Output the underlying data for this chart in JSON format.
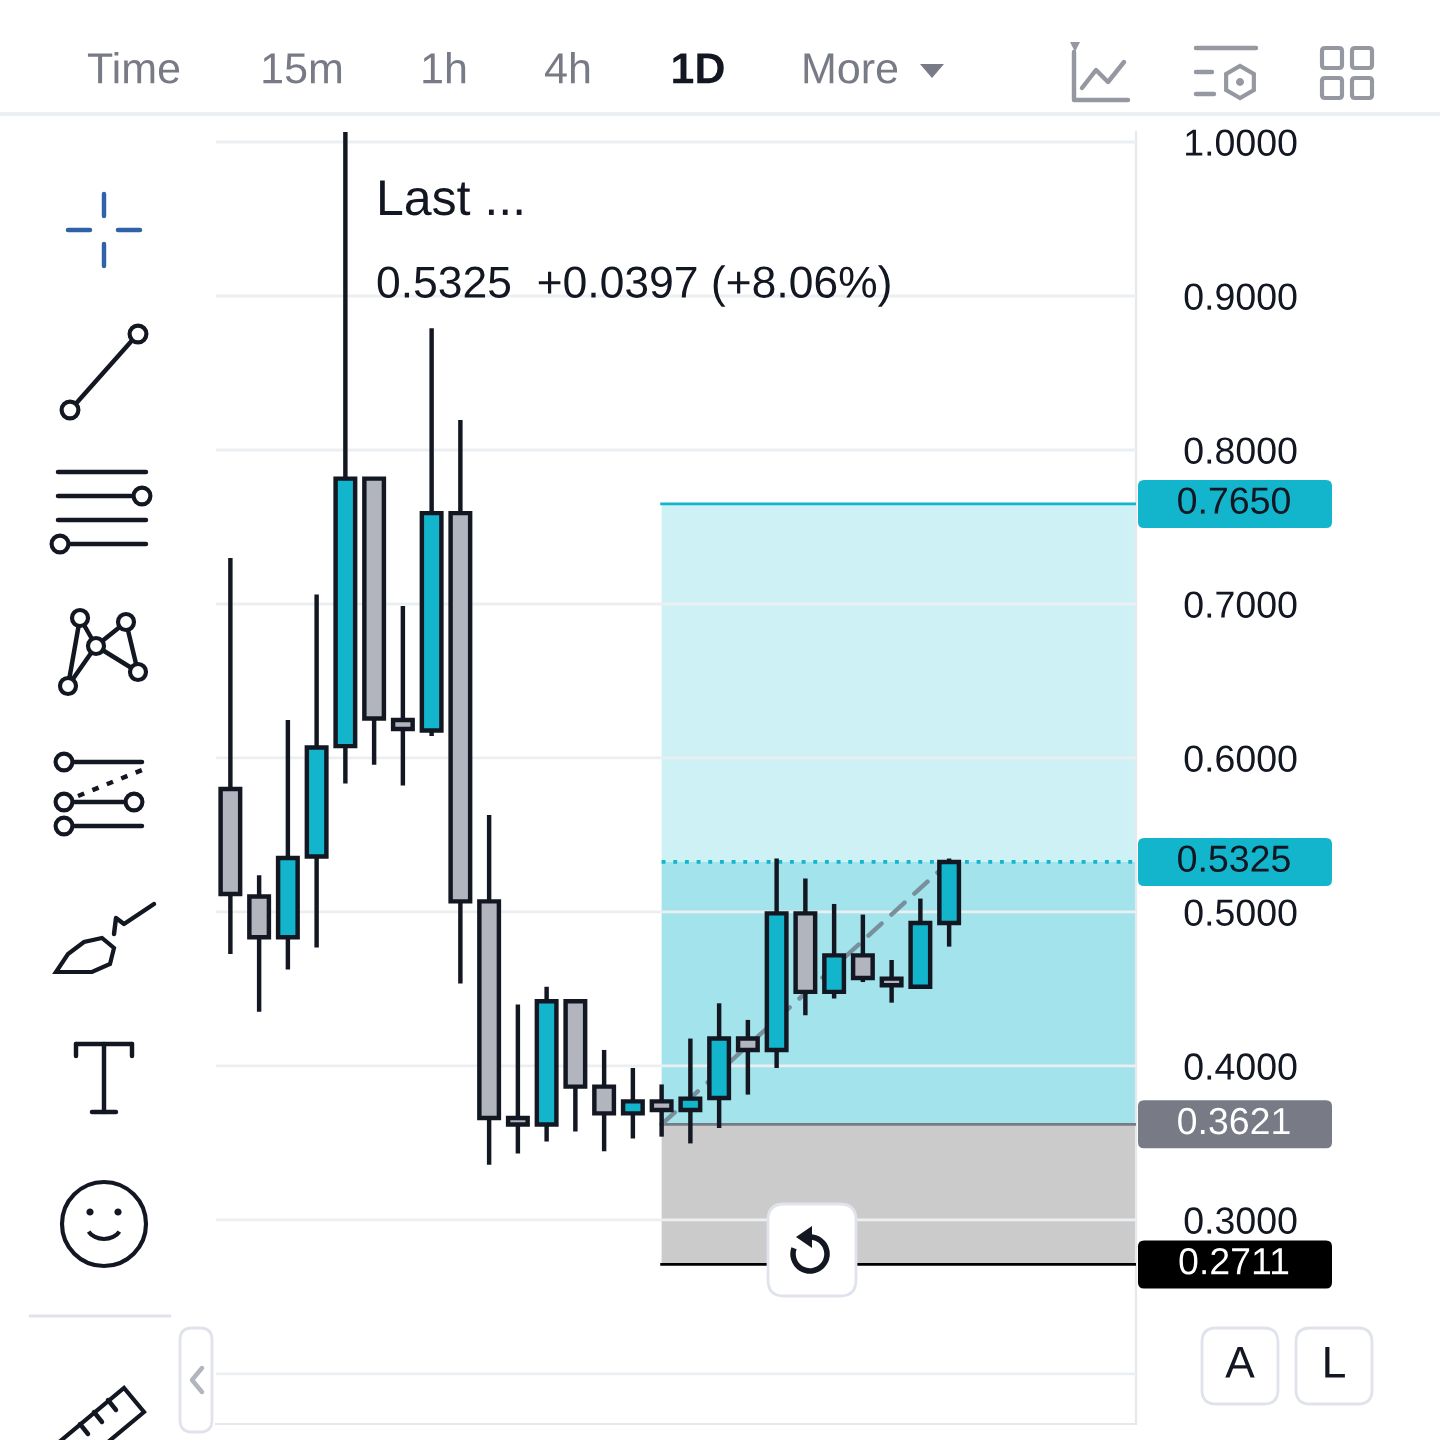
{
  "chart_data": {
    "type": "candlestick",
    "title": "Last ...",
    "subtitle": "0.5325  +0.0397 (+8.06%)",
    "categories": [
      null,
      null,
      null,
      null,
      null,
      null,
      null,
      null,
      null,
      null,
      null,
      null,
      null,
      null,
      null,
      null,
      null,
      null,
      null,
      null,
      null,
      null,
      null,
      null,
      null,
      null,
      null,
      null,
      null,
      null,
      null,
      null
    ],
    "ohlc": [
      [
        0.5799,
        0.7299,
        0.4727,
        0.5117
      ],
      [
        0.51,
        0.5239,
        0.4352,
        0.4836
      ],
      [
        0.4836,
        0.6247,
        0.4626,
        0.5351
      ],
      [
        0.536,
        0.7062,
        0.4769,
        0.6068
      ],
      [
        0.6077,
        1.0065,
        0.5835,
        0.7814
      ],
      [
        0.7814,
        0.782,
        0.5956,
        0.6256
      ],
      [
        0.6247,
        0.6987,
        0.5821,
        0.6188
      ],
      [
        0.6179,
        0.8791,
        0.6143,
        0.759
      ],
      [
        0.759,
        0.8195,
        0.4536,
        0.5069
      ],
      [
        0.5069,
        0.5629,
        0.3358,
        0.3662
      ],
      [
        0.3662,
        0.4399,
        0.3432,
        0.362
      ],
      [
        0.362,
        0.4515,
        0.351,
        0.442
      ],
      [
        0.442,
        0.442,
        0.3575,
        0.3866
      ],
      [
        0.3866,
        0.4104,
        0.3446,
        0.3692
      ],
      [
        0.3692,
        0.3987,
        0.3529,
        0.377
      ],
      [
        0.377,
        0.388,
        0.3541,
        0.3714
      ],
      [
        0.3714,
        0.4178,
        0.3497,
        0.3788
      ],
      [
        0.3792,
        0.4407,
        0.3597,
        0.4178
      ],
      [
        0.4178,
        0.4299,
        0.3814,
        0.4104
      ],
      [
        0.4104,
        0.5347,
        0.3987,
        0.4991
      ],
      [
        0.4991,
        0.5217,
        0.4329,
        0.4481
      ],
      [
        0.4481,
        0.5052,
        0.4438,
        0.4718
      ],
      [
        0.4718,
        0.4983,
        0.4545,
        0.4571
      ],
      [
        0.4567,
        0.4688,
        0.4411,
        0.4524
      ],
      [
        0.4515,
        0.5087,
        0.4515,
        0.4928
      ],
      [
        0.4928,
        0.5347,
        0.4775,
        0.5325
      ],
      null,
      null,
      null,
      null,
      null,
      null
    ],
    "colors": [
      "#b2b5be",
      "#b2b5be",
      "#12b5cb",
      "#12b5cb",
      "#12b5cb",
      "#b2b5be",
      "#b2b5be",
      "#12b5cb",
      "#b2b5be",
      "#b2b5be",
      "#b2b5be",
      "#12b5cb",
      "#b2b5be",
      "#b2b5be",
      "#12b5cb",
      "#b2b5be",
      "#12b5cb",
      "#12b5cb",
      "#b2b5be",
      "#12b5cb",
      "#b2b5be",
      "#12b5cb",
      "#b2b5be",
      "#b2b5be",
      "#12b5cb",
      "#12b5cb",
      null,
      null,
      null,
      null,
      null,
      null
    ],
    "series": [
      {
        "type": "line",
        "color": "#78909c",
        "line_style": "dashed",
        "values": [
          null,
          null,
          null,
          null,
          null,
          null,
          null,
          null,
          null,
          null,
          null,
          null,
          null,
          null,
          null,
          0.3621,
          null,
          null,
          null,
          null,
          null,
          null,
          null,
          null,
          null,
          0.5325,
          null,
          null,
          null,
          null,
          null,
          null
        ]
      }
    ],
    "ylim": [
      0.1675,
      1.0065
    ],
    "yticks": [
      {
        "value": 0.2,
        "label": null
      },
      {
        "value": 0.3,
        "label": "0.3000"
      },
      {
        "value": 0.4,
        "label": "0.4000"
      },
      {
        "value": 0.5,
        "label": "0.5000"
      },
      {
        "value": 0.6,
        "label": "0.6000"
      },
      {
        "value": 0.7,
        "label": "0.7000"
      },
      {
        "value": 0.8,
        "label": "0.8000"
      },
      {
        "value": 0.9,
        "label": "0.9000"
      },
      {
        "value": 1.0,
        "label": "1.0000"
      }
    ],
    "grid": "y",
    "tick_labels": "y",
    "bands": [
      {
        "axis": "y",
        "from": 0.5325,
        "to": 0.765,
        "color": "#cdf1f5"
      },
      {
        "axis": "y",
        "from": 0.3621,
        "to": 0.5325,
        "color": "#a3e3eb"
      },
      {
        "axis": "y",
        "from": 0.2711,
        "to": 0.3621,
        "color": "#cbcbcb"
      }
    ],
    "ref_lines": [
      {
        "axis": "y",
        "value": 0.765,
        "label": "0.7650",
        "color": "#12b5cb",
        "line_style": "solid"
      },
      {
        "axis": "y",
        "value": 0.5325,
        "label": "0.5325",
        "color": "#12b5cb",
        "line_style": "dotted"
      },
      {
        "axis": "y",
        "value": 0.3621,
        "label": "0.3621",
        "color": "#787b86",
        "line_style": "solid"
      },
      {
        "axis": "y",
        "value": 0.2711,
        "label": "0.2711",
        "color": "#000000",
        "line_style": "solid"
      }
    ],
    "annotations": [
      "Time",
      "15m",
      "1h",
      "4h",
      "1D",
      "More",
      "A",
      "L"
    ]
  }
}
